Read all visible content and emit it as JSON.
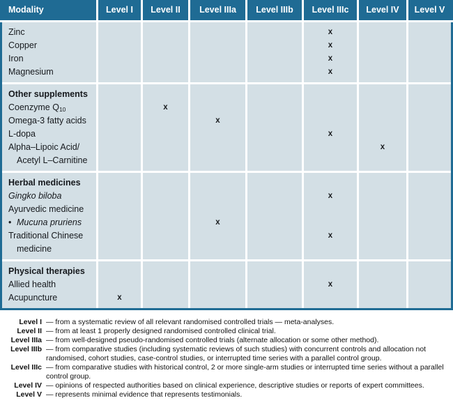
{
  "colors": {
    "header_bg": "#1f6b94",
    "cell_bg": "#d3dfe5",
    "header_text": "#ffffff",
    "body_text": "#16191d"
  },
  "table": {
    "mark_glyph": "x",
    "columns": [
      "Modality",
      "Level I",
      "Level II",
      "Level IIIa",
      "Level IIIb",
      "Level IIIc",
      "Level IV",
      "Level V"
    ],
    "sections": [
      {
        "rows": [
          {
            "label": "Zinc",
            "mark": 5
          },
          {
            "label": "Copper",
            "mark": 5
          },
          {
            "label": "Iron",
            "mark": 5
          },
          {
            "label": "Magnesium",
            "mark": 5
          }
        ]
      },
      {
        "rows": [
          {
            "label": "Other supplements",
            "bold": true
          },
          {
            "label": "Coenzyme Q",
            "sub": "10",
            "mark": 2
          },
          {
            "label": "Omega-3 fatty acids",
            "mark": 3
          },
          {
            "label": "L-dopa",
            "mark": 5
          },
          {
            "label": "Alpha–Lipoic Acid/",
            "label2": "Acetyl L–Carnitine",
            "mark": 6
          }
        ]
      },
      {
        "rows": [
          {
            "label": "Herbal medicines",
            "bold": true
          },
          {
            "label": "Gingko biloba",
            "italic": true,
            "mark": 5
          },
          {
            "label": "Ayurvedic medicine"
          },
          {
            "label": "Mucuna pruriens",
            "italic": true,
            "bullet": "•",
            "mark": 3
          },
          {
            "label": "Traditional Chinese",
            "label2": "medicine",
            "mark": 5
          }
        ]
      },
      {
        "rows": [
          {
            "label": "Physical therapies",
            "bold": true
          },
          {
            "label": "Allied health",
            "mark": 5
          },
          {
            "label": "Acupuncture",
            "mark": 1
          }
        ]
      }
    ]
  },
  "footnotes": [
    {
      "label": "Level I",
      "text": "— from a systematic review of all relevant randomised controlled trials — meta-analyses."
    },
    {
      "label": "Level II",
      "text": "— from at least 1 properly designed randomised controlled clinical trial."
    },
    {
      "label": "Level IIIa",
      "text": "— from well-designed pseudo-randomised controlled trials (alternate allocation or some other method)."
    },
    {
      "label": "Level IIIb",
      "text": "— from comparative studies (including systematic reviews of such studies) with concurrent controls and allocation not randomised, cohort studies, case-control studies, or interrupted time series with a parallel control group."
    },
    {
      "label": "Level IIIc",
      "text": "— from comparative studies with historical control, 2 or more single-arm studies or interrupted time series without a parallel control group."
    },
    {
      "label": "Level IV",
      "text": "— opinions of respected authorities based on clinical experience, descriptive studies or reports of expert committees."
    },
    {
      "label": "Level V",
      "text": "— represents minimal evidence that represents testimonials."
    }
  ]
}
